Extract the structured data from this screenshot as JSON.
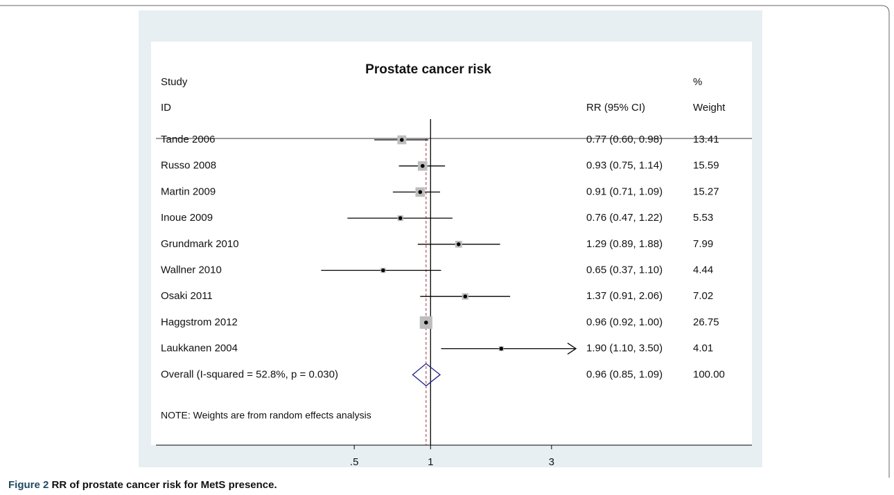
{
  "chart_data": {
    "type": "forest",
    "title": "Prostate cancer risk",
    "study_header": "Study",
    "id_header": "ID",
    "rr_header": "RR (95% CI)",
    "weight_header_top": "%",
    "weight_header": "Weight",
    "categories": [
      "Tande 2006",
      "Russo 2008",
      "Martin 2009",
      "Inoue 2009",
      "Grundmark 2010",
      "Wallner 2010",
      "Osaki 2011",
      "Haggstrom 2012",
      "Laukkanen 2004"
    ],
    "values": [
      0.77,
      0.93,
      0.91,
      0.76,
      1.29,
      0.65,
      1.37,
      0.96,
      1.9
    ],
    "lower": [
      0.6,
      0.75,
      0.71,
      0.47,
      0.89,
      0.37,
      0.91,
      0.92,
      1.1
    ],
    "upper": [
      0.98,
      1.14,
      1.09,
      1.22,
      1.88,
      1.1,
      2.06,
      1.0,
      3.5
    ],
    "value_labels": [
      "0.77 (0.60, 0.98)",
      "0.93 (0.75, 1.14)",
      "0.91 (0.71, 1.09)",
      "0.76 (0.47, 1.22)",
      "1.29 (0.89, 1.88)",
      "0.65 (0.37, 1.10)",
      "1.37 (0.91, 2.06)",
      "0.96 (0.92, 1.00)",
      "1.90 (1.10, 3.50)"
    ],
    "weights": [
      13.41,
      15.59,
      15.27,
      5.53,
      7.99,
      4.44,
      7.02,
      26.75,
      4.01
    ],
    "overall": {
      "label": "Overall  (I-squared = 52.8%, p = 0.030)",
      "value": 0.96,
      "lower": 0.85,
      "upper": 1.09,
      "value_label": "0.96 (0.85, 1.09)",
      "weight": {
        "value": 100,
        "label": "100.00"
      }
    },
    "note": "NOTE: Weights are from random effects analysis",
    "null_line": 1,
    "log_x": true,
    "xlim": [
      0.3,
      3.3
    ],
    "xticks": [
      {
        "value": 0.5,
        "label": ".5"
      },
      1,
      3
    ],
    "box_color": "#bdbdbd",
    "diamond_color": "#1a237e",
    "overall_line_color": "#a0303a"
  },
  "figure_caption": {
    "label": "Figure 2",
    "text": "RR of prostate cancer risk for MetS presence."
  }
}
